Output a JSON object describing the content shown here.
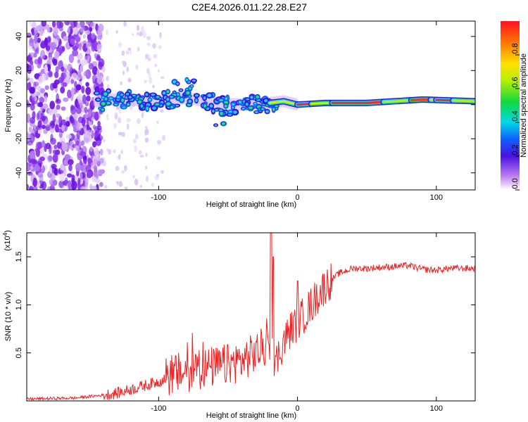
{
  "title": "C2E4.2026.011.22.28.E27",
  "colors": {
    "background": "#ffffff",
    "axis": "#000000",
    "snr_line": "#ee2222",
    "scatter_noise": "#7a22e6"
  },
  "chart_data": [
    {
      "type": "heatmap",
      "name": "spectrogram",
      "xlabel": "Height of straight line (km)",
      "ylabel": "Frequency (Hz)",
      "xlim": [
        -195,
        128
      ],
      "ylim": [
        -50,
        49
      ],
      "xticks": [
        -100,
        0,
        100
      ],
      "yticks": [
        -40,
        -20,
        0,
        20,
        40
      ],
      "xtick_labels": [
        "-100",
        "0",
        "100"
      ],
      "ytick_labels": [
        "-40",
        "-20",
        "0",
        "20",
        "40"
      ],
      "ridge": [
        {
          "x": -140,
          "f": 3
        },
        {
          "x": -120,
          "f": 3
        },
        {
          "x": -100,
          "f": 2
        },
        {
          "x": -80,
          "f": 4
        },
        {
          "x": -60,
          "f": 1
        },
        {
          "x": -40,
          "f": 0
        },
        {
          "x": -20,
          "f": 1
        },
        {
          "x": -10,
          "f": 2
        },
        {
          "x": 0,
          "f": 0
        },
        {
          "x": 20,
          "f": 1
        },
        {
          "x": 50,
          "f": 1
        },
        {
          "x": 90,
          "f": 3
        },
        {
          "x": 128,
          "f": 2
        }
      ],
      "colorbar": {
        "label": "Normalized spectral amplitude",
        "min": 0,
        "max": 1,
        "ticks": [
          0,
          0.2,
          0.4,
          0.6,
          0.8
        ],
        "tick_labels": [
          "0.0",
          "0.2",
          "0.4",
          "0.6",
          "0.8"
        ]
      }
    },
    {
      "type": "line",
      "name": "snr",
      "xlabel": "Height of straight line (km)",
      "ylabel": "SNR (10 * v/v)",
      "scale_label": "(x10",
      "scale_exponent": "4",
      "xlim": [
        -195,
        128
      ],
      "ylim": [
        0,
        1.75
      ],
      "xticks": [
        -100,
        0,
        100
      ],
      "yticks": [
        0.5,
        1.0,
        1.5
      ],
      "xtick_labels": [
        "-100",
        "0",
        "100"
      ],
      "ytick_labels": [
        "0.5",
        "1.0",
        "1.5"
      ],
      "series": [
        {
          "name": "SNR",
          "x": [
            -195,
            -160,
            -140,
            -130,
            -120,
            -100,
            -90,
            -80,
            -70,
            -60,
            -50,
            -40,
            -30,
            -25,
            -20,
            -18,
            -15,
            -10,
            -5,
            0,
            5,
            10,
            15,
            20,
            30,
            40,
            50,
            60,
            70,
            80,
            90,
            100,
            110,
            128
          ],
          "y": [
            0.02,
            0.03,
            0.06,
            0.08,
            0.12,
            0.2,
            0.28,
            0.3,
            0.34,
            0.35,
            0.38,
            0.42,
            0.5,
            0.55,
            0.58,
            0.5,
            0.42,
            0.62,
            0.74,
            0.82,
            0.9,
            1.0,
            1.1,
            1.2,
            1.33,
            1.38,
            1.38,
            1.39,
            1.4,
            1.41,
            1.37,
            1.36,
            1.38,
            1.38
          ]
        }
      ]
    }
  ]
}
